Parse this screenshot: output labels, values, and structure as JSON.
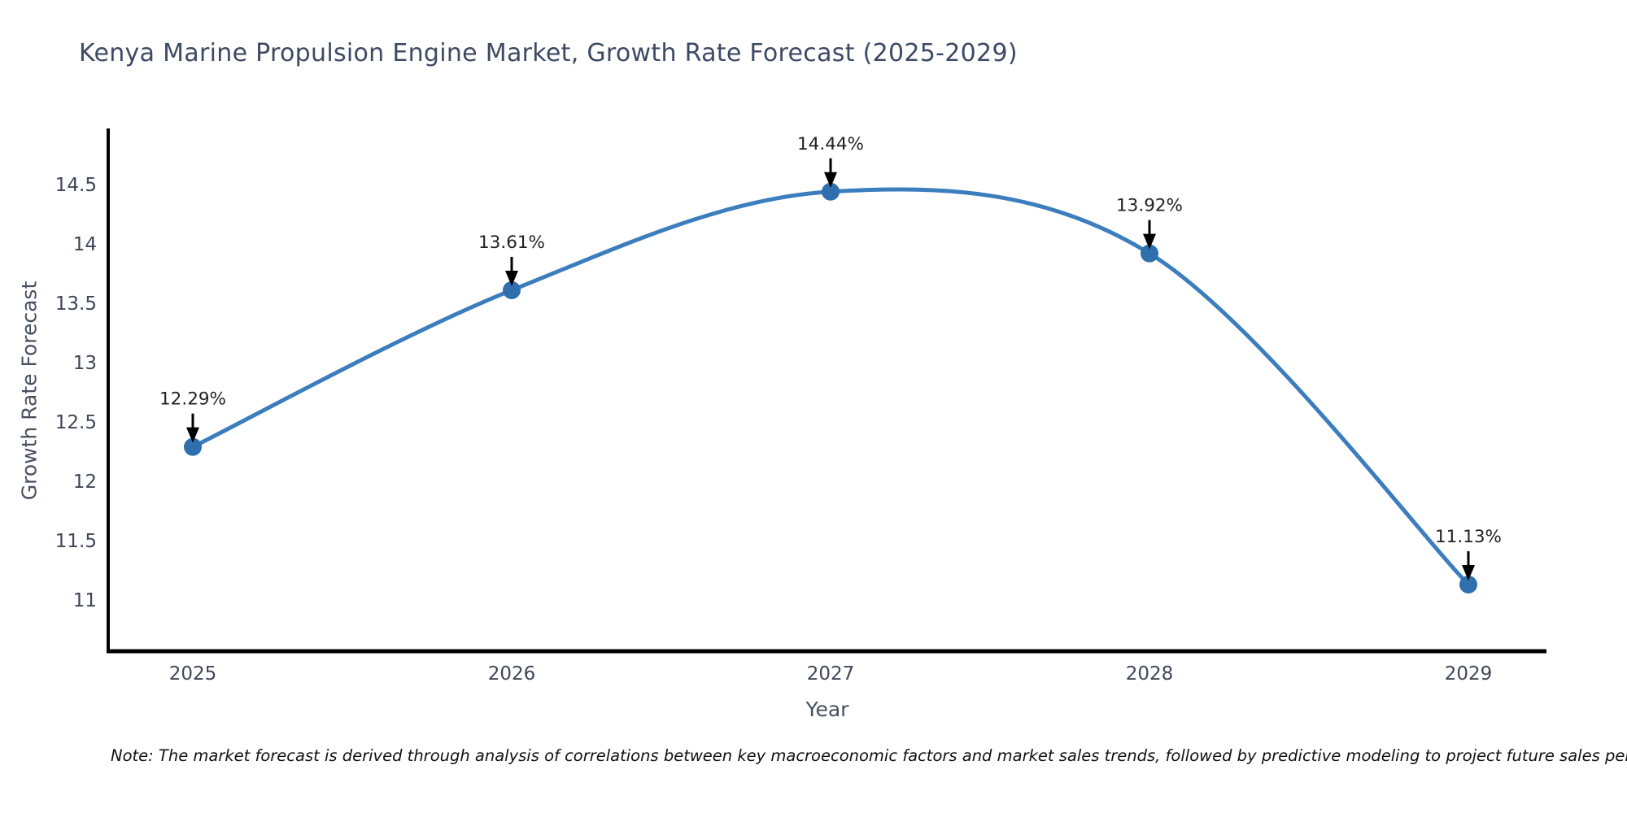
{
  "note": "Note: The market forecast is derived through analysis of correlations between key macroeconomic factors and market sales trends, followed by predictive modeling to project future sales performance.",
  "chart_data": {
    "type": "line",
    "title": "Kenya Marine Propulsion Engine Market, Growth Rate Forecast (2025-2029)",
    "xlabel": "Year",
    "ylabel": "Growth Rate Forecast",
    "categories": [
      "2025",
      "2026",
      "2027",
      "2028",
      "2029"
    ],
    "x": [
      2025,
      2026,
      2027,
      2028,
      2029
    ],
    "values": [
      12.29,
      13.61,
      14.44,
      13.92,
      11.13
    ],
    "point_labels": [
      "12.29%",
      "13.61%",
      "14.44%",
      "13.92%",
      "11.13%"
    ],
    "yticks": [
      11,
      11.5,
      12,
      12.5,
      13,
      13.5,
      14,
      14.5
    ],
    "ylim": [
      10.57,
      14.96
    ],
    "xlim": [
      2024.73,
      2029.24
    ],
    "line_shape": "spline",
    "grid": false,
    "legend_position": "none",
    "colors": {
      "line": "#3c7dbd",
      "marker": "#2f6fad",
      "axis": "#000000",
      "annotation_arrow": "#000000",
      "title_text": "#3d4a63",
      "tick_text": "#3f4756"
    }
  }
}
